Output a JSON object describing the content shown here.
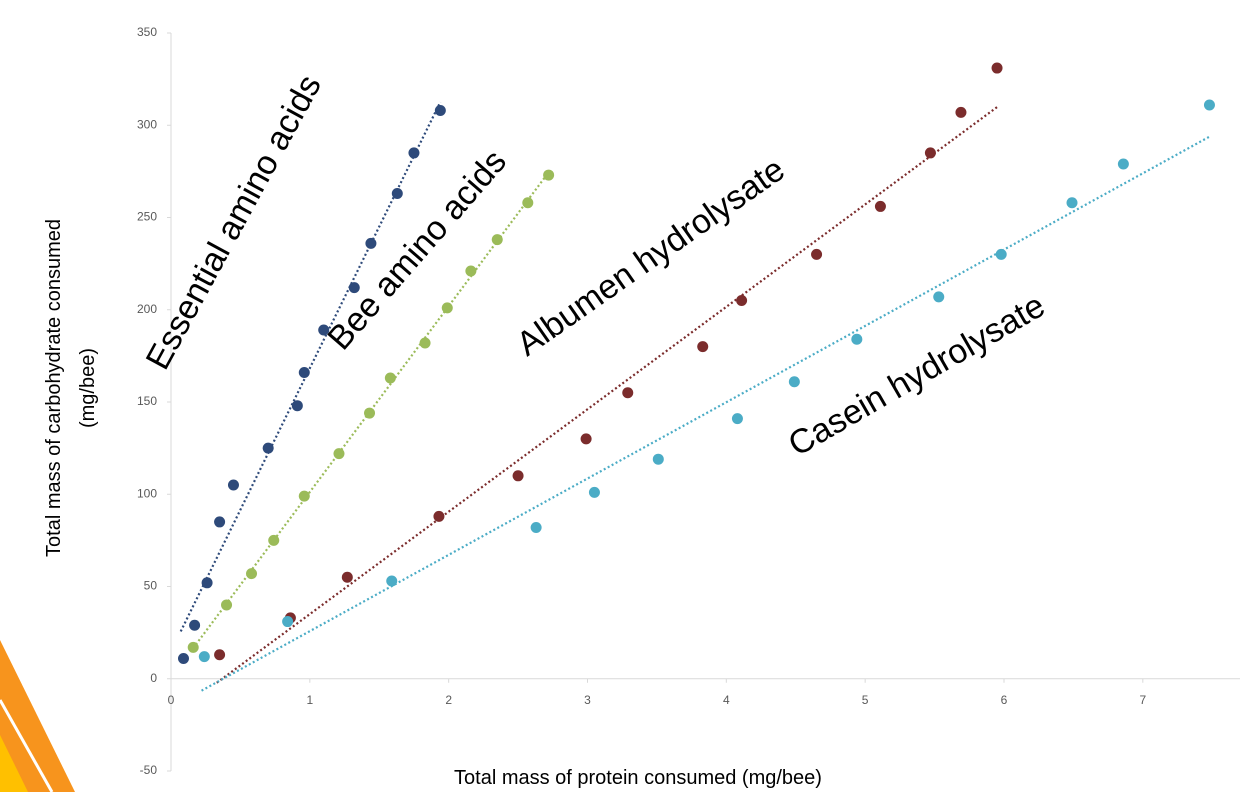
{
  "chart_data": {
    "type": "scatter",
    "xlabel": "Total mass of protein consumed (mg/bee)",
    "ylabel": [
      "Total mass of carbohydrate consumed",
      "(mg/bee)"
    ],
    "xlim": [
      0,
      7.7
    ],
    "ylim": [
      -50,
      350
    ],
    "xticks": [
      0,
      1,
      2,
      3,
      4,
      5,
      6,
      7
    ],
    "yticks": [
      -50,
      0,
      50,
      100,
      150,
      200,
      250,
      300,
      350
    ],
    "grid": false,
    "trendline": true,
    "series": [
      {
        "name": "Essential amino acids",
        "color": "#2e4a7a",
        "x": [
          0.09,
          0.17,
          0.26,
          0.35,
          0.45,
          0.7,
          0.91,
          0.96,
          1.1,
          1.32,
          1.44,
          1.63,
          1.75,
          1.94
        ],
        "values": [
          11,
          29,
          52,
          85,
          105,
          125,
          148,
          166,
          189,
          212,
          236,
          263,
          285,
          308
        ]
      },
      {
        "name": "Bee amino acids",
        "color": "#9bbb59",
        "x": [
          0.16,
          0.4,
          0.58,
          0.74,
          0.96,
          1.21,
          1.43,
          1.58,
          1.83,
          1.99,
          2.16,
          2.35,
          2.57,
          2.72
        ],
        "values": [
          17,
          40,
          57,
          75,
          99,
          122,
          144,
          163,
          182,
          201,
          221,
          238,
          258,
          273
        ]
      },
      {
        "name": "Albumen hydrolysate",
        "color": "#7b2c2c",
        "x": [
          0.35,
          0.86,
          1.27,
          1.93,
          2.5,
          2.99,
          3.29,
          3.83,
          4.11,
          4.65,
          5.11,
          5.47,
          5.69,
          5.95
        ],
        "values": [
          13,
          33,
          55,
          88,
          110,
          130,
          155,
          180,
          205,
          230,
          256,
          285,
          307,
          331
        ]
      },
      {
        "name": "Casein hydrolysate",
        "color": "#4bacc6",
        "x": [
          0.24,
          0.84,
          1.59,
          2.63,
          3.05,
          3.51,
          4.08,
          4.49,
          4.94,
          5.53,
          5.98,
          6.49,
          6.86,
          7.48
        ],
        "values": [
          12,
          31,
          53,
          82,
          101,
          119,
          141,
          161,
          184,
          207,
          230,
          258,
          279,
          311
        ]
      }
    ]
  }
}
